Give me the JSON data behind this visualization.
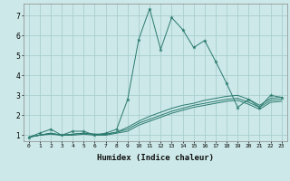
{
  "xlabel": "Humidex (Indice chaleur)",
  "background_color": "#cce8e8",
  "line_color": "#2a7a6e",
  "grid_color": "#aacece",
  "x_ticks": [
    0,
    1,
    2,
    3,
    4,
    5,
    6,
    7,
    8,
    9,
    10,
    11,
    12,
    13,
    14,
    15,
    16,
    17,
    18,
    19,
    20,
    21,
    22,
    23
  ],
  "y_ticks": [
    1,
    2,
    3,
    4,
    5,
    6,
    7
  ],
  "ylim": [
    0.7,
    7.6
  ],
  "xlim": [
    -0.5,
    23.5
  ],
  "lines": [
    {
      "x": [
        0,
        1,
        2,
        3,
        4,
        5,
        6,
        7,
        8,
        9,
        10,
        11,
        12,
        13,
        14,
        15,
        16,
        17,
        18,
        19,
        20,
        21,
        22,
        23
      ],
      "y": [
        0.9,
        1.1,
        1.3,
        1.0,
        1.2,
        1.2,
        1.0,
        1.1,
        1.3,
        2.8,
        5.8,
        7.35,
        5.3,
        6.9,
        6.3,
        5.4,
        5.75,
        4.7,
        3.6,
        2.4,
        2.8,
        2.4,
        3.0,
        2.9
      ],
      "marker": true
    },
    {
      "x": [
        0,
        1,
        2,
        3,
        4,
        5,
        6,
        7,
        8,
        9,
        10,
        11,
        12,
        13,
        14,
        15,
        16,
        17,
        18,
        19,
        20,
        21,
        22,
        23
      ],
      "y": [
        0.9,
        1.0,
        1.1,
        1.0,
        1.05,
        1.1,
        1.05,
        1.05,
        1.15,
        1.4,
        1.7,
        1.95,
        2.15,
        2.35,
        2.5,
        2.6,
        2.75,
        2.85,
        2.95,
        3.0,
        2.8,
        2.5,
        2.85,
        2.9
      ],
      "marker": false
    },
    {
      "x": [
        0,
        1,
        2,
        3,
        4,
        5,
        6,
        7,
        8,
        9,
        10,
        11,
        12,
        13,
        14,
        15,
        16,
        17,
        18,
        19,
        20,
        21,
        22,
        23
      ],
      "y": [
        0.9,
        1.0,
        1.1,
        1.0,
        1.05,
        1.1,
        1.05,
        1.05,
        1.15,
        1.3,
        1.6,
        1.8,
        2.0,
        2.2,
        2.35,
        2.5,
        2.6,
        2.7,
        2.8,
        2.85,
        2.65,
        2.4,
        2.75,
        2.8
      ],
      "marker": false
    },
    {
      "x": [
        0,
        1,
        2,
        3,
        4,
        5,
        6,
        7,
        8,
        9,
        10,
        11,
        12,
        13,
        14,
        15,
        16,
        17,
        18,
        19,
        20,
        21,
        22,
        23
      ],
      "y": [
        0.9,
        1.0,
        1.05,
        1.0,
        1.0,
        1.05,
        1.0,
        1.0,
        1.1,
        1.2,
        1.5,
        1.7,
        1.9,
        2.1,
        2.25,
        2.4,
        2.5,
        2.6,
        2.7,
        2.75,
        2.55,
        2.3,
        2.65,
        2.7
      ],
      "marker": false
    }
  ]
}
